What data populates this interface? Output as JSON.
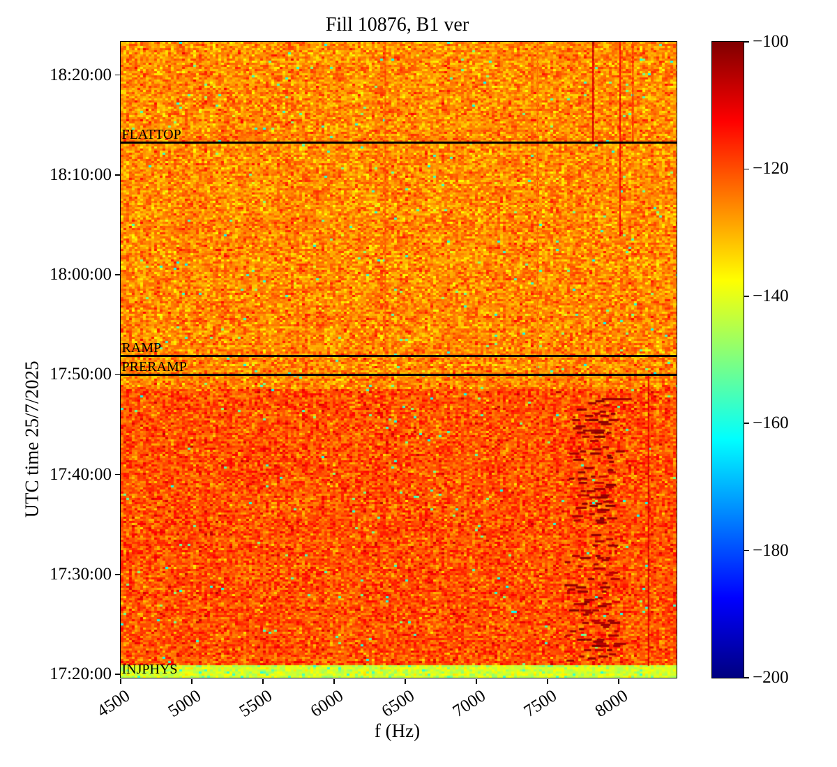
{
  "chart_data": {
    "type": "heatmap",
    "title": "Fill 10876, B1 ver",
    "xlabel": "f (Hz)",
    "ylabel": "UTC time 25/7/2025",
    "xlim": [
      4500,
      8407
    ],
    "x_ticks": [
      "4500",
      "5000",
      "5500",
      "6000",
      "6500",
      "7000",
      "7500",
      "8000"
    ],
    "time_axis": {
      "date": "25/7/2025",
      "top": "18:23:20",
      "bottom": "17:19:40",
      "ticks": [
        "18:20:00",
        "18:10:00",
        "18:00:00",
        "17:50:00",
        "17:40:00",
        "17:30:00",
        "17:20:00"
      ]
    },
    "colorbar": {
      "colormap": "jet",
      "vmin": -200,
      "vmax": -100,
      "tick_values": [
        -100,
        -120,
        -140,
        -160,
        -180,
        -200
      ],
      "tick_labels": [
        "−100",
        "−120",
        "−140",
        "−160",
        "−180",
        "−200"
      ]
    },
    "annotations": [
      {
        "label": "FLATTOP",
        "time": "18:13:13",
        "line": true
      },
      {
        "label": "RAMP",
        "time": "17:51:51",
        "line": true
      },
      {
        "label": "PRERAMP",
        "time": "17:49:58",
        "line": true
      },
      {
        "label": "INJPHYS",
        "time": "17:19:40",
        "line": false
      }
    ],
    "regions": [
      {
        "name": "flattop-ramp-upper",
        "time_from": "17:48:30",
        "time_to": "18:23:20",
        "mean_db": -126,
        "noise_db": 4.8
      },
      {
        "name": "injection-plateau",
        "time_from": "17:21:00",
        "time_to": "17:48:30",
        "mean_db": -120.5,
        "noise_db": 4.8
      },
      {
        "name": "injphys-low-band",
        "time_from": "17:19:40",
        "time_to": "17:21:00",
        "mean_db": -142,
        "noise_db": 3.0
      }
    ],
    "features": {
      "speckle_band": {
        "f_from": 7600,
        "f_to": 8040,
        "time_from": "17:21:10",
        "time_to": "17:47:40",
        "db": -103,
        "density": 0.055
      },
      "vlines": [
        {
          "f": 7820,
          "time_from": "18:13:13",
          "time_to": "18:23:20",
          "db": -109,
          "width_hz": 12
        },
        {
          "f": 8010,
          "time_from": "18:04:00",
          "time_to": "18:23:20",
          "db": -113,
          "width_hz": 10
        },
        {
          "f": 8100,
          "time_from": "18:13:13",
          "time_to": "18:23:20",
          "db": -117,
          "width_hz": 8
        },
        {
          "f": 6360,
          "time_from": "17:49:58",
          "time_to": "18:23:20",
          "db": -122,
          "width_hz": 8
        },
        {
          "f": 7430,
          "time_from": "17:49:58",
          "time_to": "18:23:20",
          "db": -123,
          "width_hz": 8
        },
        {
          "f": 8210,
          "time_from": "17:21:00",
          "time_to": "17:49:58",
          "db": -110,
          "width_hz": 7
        }
      ]
    }
  }
}
